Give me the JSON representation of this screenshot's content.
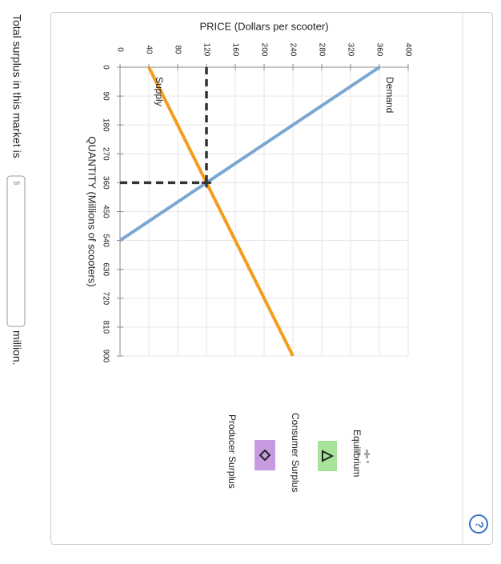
{
  "question": {
    "before": "Total surplus in this market is",
    "placeholder": "$",
    "after": "million."
  },
  "help": "?",
  "chart_data": {
    "type": "line",
    "x_label": "QUANTITY (Millions of scooters)",
    "y_label": "PRICE (Dollars per scooter)",
    "xlim": [
      0,
      900
    ],
    "xticks": [
      0,
      90,
      180,
      270,
      360,
      450,
      540,
      630,
      720,
      810,
      900
    ],
    "ylim": [
      0,
      400
    ],
    "yticks": [
      0,
      40,
      80,
      120,
      160,
      200,
      240,
      280,
      320,
      360,
      400
    ],
    "grid": true,
    "series": [
      {
        "name": "Demand",
        "color": "#7ba7d0",
        "x": [
          0,
          540
        ],
        "values": [
          360,
          0
        ]
      },
      {
        "name": "Supply",
        "color": "#f39c1f",
        "x": [
          0,
          900
        ],
        "values": [
          40,
          240
        ]
      }
    ],
    "equilibrium": {
      "x": 360,
      "y": 120
    },
    "legend": [
      "Equilibrium",
      "Consumer Surplus",
      "Producer Surplus"
    ]
  }
}
